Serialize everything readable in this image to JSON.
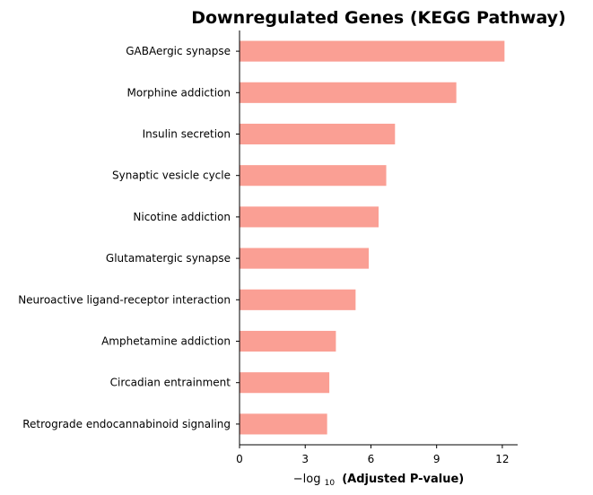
{
  "chart_data": {
    "type": "bar",
    "orientation": "horizontal",
    "title": "Downregulated Genes (KEGG Pathway)",
    "categories": [
      "GABAergic synapse",
      "Morphine addiction",
      "Insulin secretion",
      "Synaptic vesicle cycle",
      "Nicotine addiction",
      "Glutamatergic synapse",
      "Neuroactive ligand-receptor interaction",
      "Amphetamine addiction",
      "Circadian entrainment",
      "Retrograde endocannabinoid signaling"
    ],
    "values": [
      12.1,
      9.9,
      7.1,
      6.7,
      6.35,
      5.9,
      5.3,
      4.4,
      4.1,
      4.0
    ],
    "xlabel": {
      "prefix": "−log",
      "subscript": "10",
      "bold_part": "(Adjusted P-value)"
    },
    "ylabel": "",
    "xlim": [
      0,
      12.7
    ],
    "xticks": [
      0,
      3,
      6,
      9,
      12
    ],
    "xtick_labels": [
      "0",
      "3",
      "6",
      "9",
      "12"
    ],
    "bar_color": "#fa9f94",
    "grid": false,
    "legend": "none"
  }
}
